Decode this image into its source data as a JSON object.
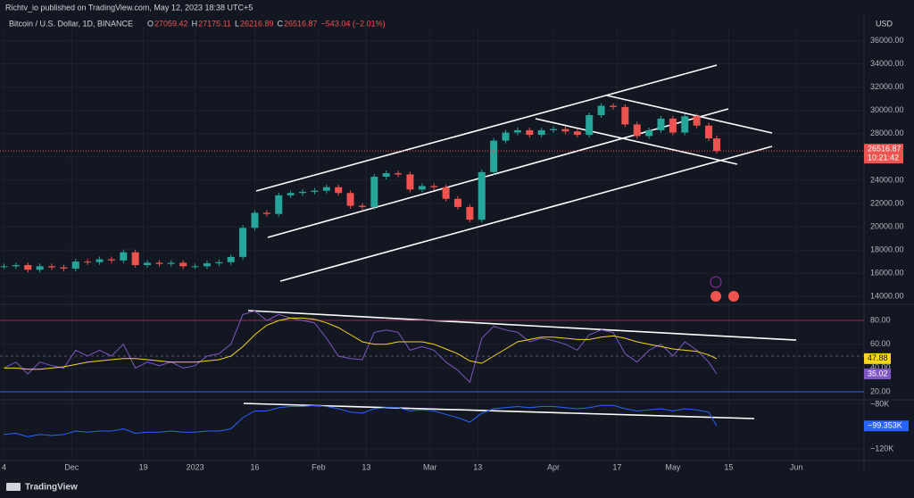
{
  "header": {
    "publisher": "Richtv_io published on TradingView.com, May 12, 2023 18:38 UTC+5",
    "symbol": "Bitcoin / U.S. Dollar, 1D, BINANCE",
    "ohlc": [
      {
        "label": "O",
        "value": "27059.42"
      },
      {
        "label": "H",
        "value": "27175.11"
      },
      {
        "label": "L",
        "value": "26216.89"
      },
      {
        "label": "C",
        "value": "26516.87"
      }
    ],
    "change": "−543.04 (−2.01%)",
    "currency": "USD",
    "countdown": "10:21:42"
  },
  "footer": {
    "brand": "TradingView"
  },
  "chart_data": [
    {
      "type": "candlestick",
      "name": "price",
      "x": [
        "2022-11-14",
        "2022-11-17",
        "2022-11-20",
        "2022-11-23",
        "2022-11-26",
        "2022-11-29",
        "2022-12-02",
        "2022-12-05",
        "2022-12-08",
        "2022-12-11",
        "2022-12-14",
        "2022-12-17",
        "2022-12-20",
        "2022-12-23",
        "2022-12-26",
        "2022-12-29",
        "2023-01-01",
        "2023-01-04",
        "2023-01-07",
        "2023-01-10",
        "2023-01-13",
        "2023-01-16",
        "2023-01-19",
        "2023-01-22",
        "2023-01-25",
        "2023-01-28",
        "2023-01-31",
        "2023-02-03",
        "2023-02-06",
        "2023-02-09",
        "2023-02-12",
        "2023-02-15",
        "2023-02-18",
        "2023-02-21",
        "2023-02-24",
        "2023-02-27",
        "2023-03-02",
        "2023-03-05",
        "2023-03-08",
        "2023-03-11",
        "2023-03-14",
        "2023-03-17",
        "2023-03-20",
        "2023-03-23",
        "2023-03-26",
        "2023-03-29",
        "2023-04-01",
        "2023-04-04",
        "2023-04-07",
        "2023-04-10",
        "2023-04-13",
        "2023-04-16",
        "2023-04-19",
        "2023-04-22",
        "2023-04-25",
        "2023-04-28",
        "2023-05-01",
        "2023-05-04",
        "2023-05-07",
        "2023-05-10",
        "2023-05-12"
      ],
      "values": [
        16600,
        16700,
        16300,
        16600,
        16500,
        16400,
        17000,
        16950,
        17200,
        17100,
        17800,
        16700,
        16900,
        16800,
        16900,
        16600,
        16600,
        16850,
        16950,
        17400,
        19900,
        21200,
        21100,
        22700,
        22900,
        23000,
        23100,
        23400,
        22900,
        21800,
        21700,
        24300,
        24600,
        24500,
        23200,
        23500,
        23400,
        22400,
        21700,
        20600,
        24700,
        27400,
        28100,
        28300,
        27900,
        28300,
        28400,
        28200,
        27900,
        29600,
        30400,
        30300,
        28800,
        27800,
        28300,
        29300,
        28100,
        29500,
        28700,
        27600,
        26516.87
      ],
      "value_labels": {
        "60": "26516.87"
      },
      "up_color": "#26a69a",
      "down_color": "#ef5350",
      "xlim": [
        "2022-11-13",
        "2023-06-18"
      ],
      "xticks": [
        {
          "value": "2022-11-14",
          "label": "4"
        },
        {
          "value": "2022-12-01",
          "label": "Dec"
        },
        {
          "value": "2022-12-19",
          "label": "19"
        },
        {
          "value": "2023-01-01",
          "label": "2023"
        },
        {
          "value": "2023-01-16",
          "label": "16"
        },
        {
          "value": "2023-02-01",
          "label": "Feb"
        },
        {
          "value": "2023-02-13",
          "label": "13"
        },
        {
          "value": "2023-03-01",
          "label": "Mar"
        },
        {
          "value": "2023-03-13",
          "label": "13"
        },
        {
          "value": "2023-04-01",
          "label": "Apr"
        },
        {
          "value": "2023-04-17",
          "label": "17"
        },
        {
          "value": "2023-05-01",
          "label": "May"
        },
        {
          "value": "2023-05-15",
          "label": "15"
        },
        {
          "value": "2023-06-01",
          "label": "Jun"
        }
      ],
      "ylim": [
        13400,
        37200
      ],
      "yticks": [
        {
          "value": 14000,
          "label": "14000.00"
        },
        {
          "value": 16000,
          "label": "16000.00"
        },
        {
          "value": 18000,
          "label": "18000.00"
        },
        {
          "value": 20000,
          "label": "20000.00"
        },
        {
          "value": 22000,
          "label": "22000.00"
        },
        {
          "value": 24000,
          "label": "24000.00"
        },
        {
          "value": 26000,
          "label": "26000.00"
        },
        {
          "value": 28000,
          "label": "28000.00"
        },
        {
          "value": 30000,
          "label": "30000.00"
        },
        {
          "value": 32000,
          "label": "32000.00"
        },
        {
          "value": 34000,
          "label": "34000.00"
        },
        {
          "value": 36000,
          "label": "36000.00"
        }
      ]
    },
    {
      "type": "line",
      "name": "rsi",
      "series": [
        {
          "color": "#7e57c2",
          "values": [
            40,
            45,
            35,
            45,
            42,
            40,
            55,
            50,
            55,
            50,
            60,
            40,
            45,
            42,
            45,
            40,
            42,
            50,
            52,
            60,
            85,
            88,
            80,
            85,
            82,
            80,
            78,
            65,
            50,
            48,
            47,
            70,
            72,
            70,
            55,
            58,
            55,
            45,
            38,
            28,
            65,
            75,
            72,
            70,
            62,
            65,
            63,
            60,
            55,
            68,
            72,
            70,
            52,
            45,
            55,
            60,
            50,
            62,
            55,
            45,
            35.02
          ],
          "value_labels": {
            "60": "35.02"
          }
        },
        {
          "color": "#f7d51d",
          "values": [
            40,
            40,
            39,
            39,
            40,
            41,
            43,
            45,
            46,
            47,
            48,
            48,
            47,
            46,
            45,
            45,
            45,
            46,
            47,
            50,
            58,
            68,
            76,
            80,
            82,
            82,
            81,
            78,
            74,
            68,
            62,
            60,
            60,
            62,
            62,
            62,
            60,
            56,
            52,
            46,
            44,
            50,
            56,
            62,
            64,
            66,
            66,
            65,
            64,
            64,
            66,
            67,
            65,
            62,
            60,
            58,
            56,
            55,
            54,
            51,
            47.88
          ],
          "value_labels": {
            "60": "47.88"
          }
        }
      ],
      "ylim": [
        14,
        92.8
      ],
      "yticks": [
        {
          "value": 20,
          "label": "20.00"
        },
        {
          "value": 40,
          "label": "40.00"
        },
        {
          "value": 60,
          "label": "60.00"
        },
        {
          "value": 80,
          "label": "80.00"
        }
      ]
    },
    {
      "type": "line",
      "name": "volume-flow",
      "series": [
        {
          "color": "#2962ff",
          "values": [
            -107,
            -106,
            -109,
            -107,
            -108,
            -107,
            -104,
            -105,
            -104,
            -104,
            -102,
            -106,
            -105,
            -105,
            -104,
            -105,
            -105,
            -104,
            -104,
            -102,
            -92,
            -86,
            -86,
            -83,
            -82,
            -82,
            -81,
            -82,
            -84,
            -87,
            -88,
            -84,
            -83,
            -83,
            -86,
            -85,
            -86,
            -89,
            -92,
            -96,
            -88,
            -84,
            -83,
            -82,
            -83,
            -82,
            -82,
            -83,
            -84,
            -83,
            -81,
            -81,
            -84,
            -86,
            -85,
            -84,
            -86,
            -84,
            -85,
            -87,
            -99.353
          ],
          "value_labels": {
            "60": "−99.353K"
          }
        }
      ],
      "ylim": [
        -129.6,
        -76.8
      ],
      "yticks": [
        {
          "value": -80,
          "label": "−80K"
        },
        {
          "value": -120,
          "label": "−120K"
        }
      ]
    }
  ]
}
